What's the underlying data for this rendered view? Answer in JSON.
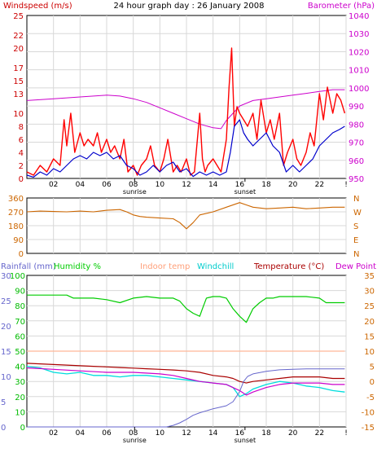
{
  "chart_data": [
    {
      "type": "line",
      "title": "24 hour graph day : 26 January 2008",
      "left_axis_label": "Windspeed (m/s)",
      "right_axis_label": "Barometer (hPa)",
      "left_ticks": [
        "0",
        "2",
        "4",
        "6",
        "8",
        "10",
        "13",
        "15",
        "17",
        "20",
        "22",
        "25"
      ],
      "right_ticks": [
        "950",
        "960",
        "970",
        "980",
        "990",
        "1000",
        "1010",
        "1020",
        "1030",
        "1040"
      ],
      "x_ticks": [
        "02",
        "04",
        "06",
        "08",
        "10",
        "12",
        "14",
        "16",
        "18",
        "20",
        "22",
        "!"
      ],
      "sunrise_label": "sunrise",
      "sunset_label": "sunset",
      "sunrise_hour": 8.1,
      "sunset_hour": 16.4,
      "grid": true,
      "colors": {
        "gust": "#ff0000",
        "wind": "#0000cc",
        "barometer": "#cc00cc"
      },
      "series": [
        {
          "key": "barometer",
          "axis": "right",
          "x": [
            0,
            2,
            4,
            6,
            7,
            8,
            9,
            10,
            11,
            12,
            13,
            14,
            14.6,
            15,
            16,
            17,
            18,
            19,
            20,
            21,
            22,
            23,
            23.9
          ],
          "y": [
            993,
            994,
            995,
            996,
            995.5,
            994,
            992,
            989,
            986,
            983,
            980,
            978,
            977.5,
            982,
            990,
            993,
            994,
            995,
            996,
            997,
            998,
            999,
            999
          ]
        },
        {
          "key": "gust",
          "axis": "left",
          "x": [
            0,
            0.5,
            1,
            1.5,
            2,
            2.5,
            2.8,
            3,
            3.3,
            3.6,
            4,
            4.3,
            4.6,
            5,
            5.3,
            5.6,
            6,
            6.3,
            6.6,
            7,
            7.3,
            7.6,
            8,
            8.3,
            8.6,
            9,
            9.3,
            9.6,
            10,
            10.3,
            10.6,
            11,
            11.3,
            11.6,
            12,
            12.3,
            12.6,
            13,
            13.2,
            13.4,
            13.6,
            14,
            14.3,
            14.6,
            15,
            15.2,
            15.4,
            15.6,
            15.8,
            16,
            16.3,
            16.6,
            17,
            17.3,
            17.6,
            18,
            18.3,
            18.6,
            19,
            19.3,
            19.6,
            20,
            20.3,
            20.6,
            21,
            21.3,
            21.6,
            22,
            22.3,
            22.6,
            23,
            23.3,
            23.6,
            23.9
          ],
          "y": [
            1,
            0.5,
            2,
            1,
            3,
            2,
            9,
            5,
            10,
            4,
            7,
            5,
            6,
            5,
            7,
            4,
            6,
            4,
            5,
            3,
            6,
            1,
            2,
            0.5,
            2,
            3,
            5,
            2,
            1,
            3,
            6,
            1,
            2,
            1,
            3,
            0.5,
            1,
            10,
            3,
            1,
            2,
            3,
            2,
            1,
            6,
            14,
            20,
            8,
            11,
            10,
            9,
            8,
            10,
            6,
            12,
            7,
            9,
            6,
            10,
            2,
            4,
            6,
            3,
            2,
            4,
            7,
            5,
            13,
            9,
            14,
            10,
            13,
            12,
            10
          ]
        },
        {
          "key": "wind",
          "axis": "left",
          "x": [
            0,
            0.5,
            1,
            1.5,
            2,
            2.5,
            3,
            3.5,
            4,
            4.5,
            5,
            5.5,
            6,
            6.5,
            7,
            7.5,
            8,
            8.5,
            9,
            9.5,
            10,
            10.5,
            11,
            11.5,
            12,
            12.5,
            13,
            13.5,
            14,
            14.5,
            15,
            15.3,
            15.6,
            16,
            16.3,
            16.6,
            17,
            17.5,
            18,
            18.5,
            19,
            19.5,
            20,
            20.5,
            21,
            21.5,
            22,
            22.5,
            23,
            23.5,
            23.9
          ],
          "y": [
            0.5,
            0.2,
            1,
            0.5,
            1.5,
            1,
            2,
            3,
            3.5,
            3,
            4,
            3.5,
            4,
            3,
            3.5,
            2,
            1.5,
            0.5,
            1,
            2,
            1,
            2,
            2.5,
            1,
            1.5,
            0.3,
            1,
            0.5,
            1,
            0.5,
            1,
            4,
            8,
            9,
            7,
            6,
            5,
            6,
            7,
            5,
            4,
            1,
            2,
            1,
            2,
            3,
            5,
            6,
            7,
            7.5,
            8
          ]
        }
      ]
    },
    {
      "type": "line",
      "left_ticks": [
        "360",
        "270",
        "180",
        "90",
        "0"
      ],
      "right_ticks": [
        "N",
        "W",
        "S",
        "E",
        "N"
      ],
      "color": "#cc6600",
      "x": [
        0,
        1,
        2,
        3,
        4,
        5,
        6,
        7,
        7.5,
        8,
        8.5,
        9,
        10,
        11,
        11.5,
        12,
        12.5,
        13,
        14,
        15,
        16,
        16.5,
        17,
        18,
        19,
        20,
        21,
        22,
        23,
        23.9
      ],
      "y": [
        270,
        275,
        272,
        270,
        275,
        270,
        280,
        285,
        270,
        250,
        240,
        235,
        230,
        225,
        200,
        160,
        200,
        250,
        270,
        300,
        330,
        315,
        300,
        290,
        295,
        300,
        290,
        295,
        300,
        300
      ]
    },
    {
      "type": "line",
      "legend": [
        "Rainfall (mm)",
        "Humidity %",
        "Indoor temp",
        "Windchill",
        "Temperature (°C)",
        "Dew Point"
      ],
      "rain_ticks": [
        "0",
        "5",
        "10",
        "15",
        "20",
        "25",
        "30"
      ],
      "humidity_ticks": [
        "0",
        "10",
        "20",
        "30",
        "40",
        "50",
        "60",
        "70",
        "80",
        "90",
        "100"
      ],
      "temp_ticks": [
        "-15",
        "-10",
        "-5",
        "0",
        "5",
        "10",
        "15",
        "20",
        "25",
        "30",
        "35"
      ],
      "x_ticks": [
        "02",
        "04",
        "06",
        "08",
        "10",
        "12",
        "14",
        "16",
        "18",
        "20",
        "22",
        "!"
      ],
      "sunrise_label": "sunrise",
      "sunset_label": "sunset",
      "colors": {
        "rainfall": "#6666cc",
        "humidity": "#00cc00",
        "indoor": "#ffb899",
        "windchill": "#00dddd",
        "temperature": "#aa0000",
        "dewpoint": "#cc00cc"
      },
      "series": [
        {
          "key": "indoor",
          "axis": "temp",
          "x": [
            0,
            23.9
          ],
          "y": [
            10,
            10
          ]
        },
        {
          "key": "humidity",
          "axis": "humidity",
          "x": [
            0,
            3,
            3.5,
            5,
            6,
            7,
            8,
            9,
            10,
            11,
            11.5,
            12,
            12.5,
            13,
            13.2,
            13.5,
            14,
            14.5,
            15,
            15.5,
            16,
            16.5,
            17,
            17.5,
            18,
            18.5,
            19,
            20,
            21,
            22,
            22.5,
            23,
            23.9
          ],
          "y": [
            87,
            87,
            85,
            85,
            84,
            82,
            85,
            86,
            85,
            85,
            83,
            78,
            75,
            73,
            78,
            85,
            86,
            86,
            85,
            78,
            73,
            69,
            78,
            82,
            85,
            85,
            86,
            86,
            86,
            85,
            82,
            82,
            82
          ]
        },
        {
          "key": "temperature",
          "axis": "temp",
          "x": [
            0,
            1,
            2,
            3,
            4,
            5,
            6,
            7,
            8,
            9,
            10,
            11,
            12,
            13,
            14,
            15,
            15.5,
            16,
            16.5,
            17,
            18,
            19,
            20,
            21,
            22,
            23,
            23.9
          ],
          "y": [
            6,
            5.8,
            5.6,
            5.4,
            5.2,
            5,
            4.8,
            4.6,
            4.4,
            4.2,
            4,
            3.8,
            3.5,
            3,
            2,
            1.5,
            1,
            0,
            -0.5,
            0,
            0.5,
            1,
            1.5,
            1.5,
            1.5,
            1,
            1
          ]
        },
        {
          "key": "windchill",
          "axis": "temp",
          "x": [
            0,
            1,
            2,
            3,
            4,
            5,
            6,
            7,
            8,
            9,
            10,
            11,
            12,
            13,
            14,
            15,
            15.5,
            16,
            16.5,
            17,
            18,
            19,
            20,
            21,
            22,
            23,
            23.9
          ],
          "y": [
            5,
            4.5,
            3,
            2.5,
            3,
            2,
            2,
            1.5,
            2,
            2,
            1.5,
            1,
            0.5,
            0,
            -0.5,
            -1,
            -2,
            -5,
            -4,
            -2.5,
            -1,
            0,
            -0.5,
            -1.5,
            -2,
            -3,
            -3.5
          ]
        },
        {
          "key": "dewpoint",
          "axis": "temp",
          "x": [
            0,
            2,
            4,
            6,
            8,
            10,
            11,
            12,
            13,
            14,
            15,
            16,
            16.5,
            17,
            18,
            19,
            20,
            21,
            22,
            23,
            23.9
          ],
          "y": [
            4.5,
            4,
            3.5,
            3,
            3,
            2.5,
            2,
            1,
            0,
            -0.5,
            -1,
            -3,
            -4.5,
            -3.5,
            -2,
            -1,
            -0.5,
            -0.5,
            -0.5,
            -1,
            -1
          ]
        },
        {
          "key": "rainfall",
          "axis": "rain",
          "x": [
            0,
            10.5,
            11,
            11.5,
            12,
            12.5,
            13,
            13.5,
            14,
            15,
            15.5,
            16,
            16.3,
            16.6,
            17,
            18,
            19,
            20,
            21,
            22,
            23,
            23.9
          ],
          "y": [
            0,
            0,
            0.3,
            0.8,
            1.5,
            2.3,
            2.8,
            3.2,
            3.6,
            4.2,
            5,
            7,
            9,
            10,
            10.5,
            11,
            11.3,
            11.4,
            11.5,
            11.5,
            11.5,
            11.5
          ]
        }
      ]
    }
  ]
}
